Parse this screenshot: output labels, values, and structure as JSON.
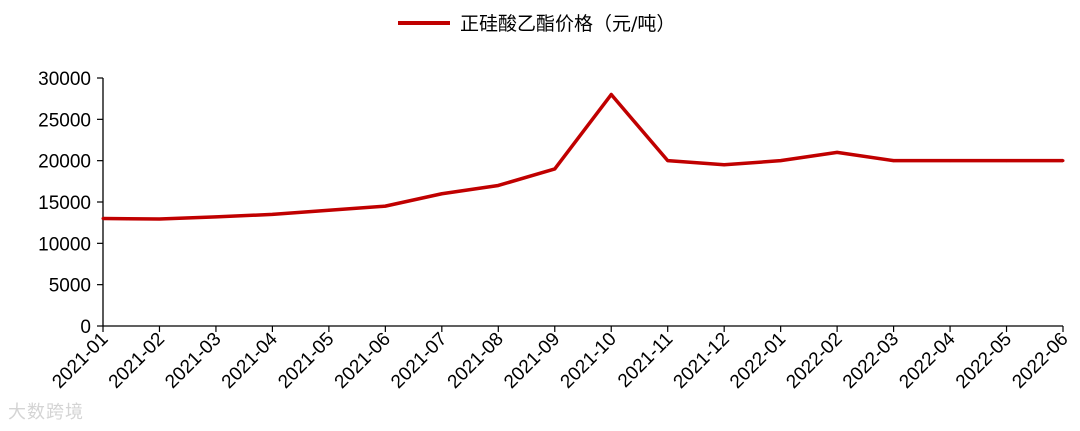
{
  "chart_data": {
    "type": "line",
    "x": [
      "2021-01",
      "2021-02",
      "2021-03",
      "2021-04",
      "2021-05",
      "2021-06",
      "2021-07",
      "2021-08",
      "2021-09",
      "2021-10",
      "2021-11",
      "2021-12",
      "2022-01",
      "2022-02",
      "2022-03",
      "2022-04",
      "2022-05",
      "2022-06"
    ],
    "series": [
      {
        "name": "正硅酸乙酯价格（元/吨）",
        "values": [
          13000,
          12950,
          13200,
          13500,
          14000,
          14500,
          16000,
          17000,
          19000,
          28000,
          20000,
          19500,
          20000,
          21000,
          20000,
          20000,
          20000,
          20000
        ],
        "color": "#c00000"
      }
    ],
    "ylim": [
      0,
      30000
    ],
    "yticks": [
      "0",
      "5000",
      "10000",
      "15000",
      "20000",
      "25000",
      "30000"
    ],
    "grid": false,
    "legend": "top-center"
  },
  "watermark": "大数跨境"
}
